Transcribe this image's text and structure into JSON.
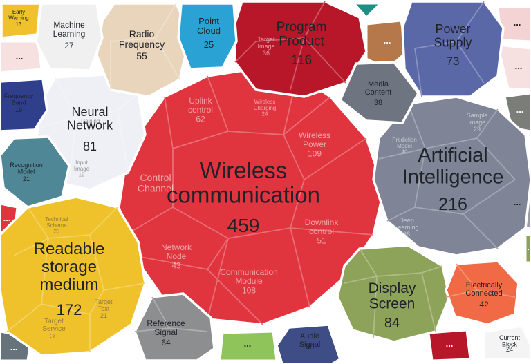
{
  "chart_data": {
    "type": "voronoi-treemap",
    "title": "",
    "cells": [
      {
        "label": "Wireless communication",
        "value": 459,
        "color": "#e0343f",
        "sub": [
          {
            "label": "Uplink control",
            "value": 62
          },
          {
            "label": "Wireless Charging",
            "value": 24
          },
          {
            "label": "Wireless Power",
            "value": 109
          },
          {
            "label": "Control Channel",
            "value": null
          },
          {
            "label": "Network Node",
            "value": 43
          },
          {
            "label": "Communication Module",
            "value": 108
          },
          {
            "label": "Downlink control",
            "value": 51
          }
        ]
      },
      {
        "label": "Artificial Intelligence",
        "value": 216,
        "color": "#7f8496",
        "sub": [
          {
            "label": "Prediction Model",
            "value": 40
          },
          {
            "label": "Sample image",
            "value": 29
          },
          {
            "label": "Deep Learning",
            "value": 38
          }
        ]
      },
      {
        "label": "Readable storage medium",
        "value": 172,
        "color": "#efc12a",
        "sub": [
          {
            "label": "Technical Scheme",
            "value": 23
          },
          {
            "label": "Target Text",
            "value": 21
          },
          {
            "label": "Target Service",
            "value": 30
          }
        ]
      },
      {
        "label": "Program Product",
        "value": 116,
        "color": "#b8172a",
        "sub": [
          {
            "label": "Target Image",
            "value": 36
          }
        ]
      },
      {
        "label": "Display Screen",
        "value": 84,
        "color": "#8ea35a",
        "sub": []
      },
      {
        "label": "Neural Network",
        "value": 81,
        "color": "#eef0f5",
        "sub": [
          {
            "label": "Training",
            "value": null
          },
          {
            "label": "Input Image",
            "value": 19
          }
        ]
      },
      {
        "label": "Power Supply",
        "value": 73,
        "color": "#5b68a8",
        "sub": []
      },
      {
        "label": "Reference Signal",
        "value": 64,
        "color": "#8d8e8f",
        "sub": []
      },
      {
        "label": "Radio Frequency",
        "value": 55,
        "color": "#e8d5bc",
        "sub": []
      },
      {
        "label": "Electrically Connected",
        "value": 42,
        "color": "#ef6a45",
        "sub": []
      },
      {
        "label": "Media Content",
        "value": 38,
        "color": "#6e7580",
        "sub": []
      },
      {
        "label": "Audio Signal",
        "value": 30,
        "color": "#3f4d86",
        "sub": []
      },
      {
        "label": "Machine Learning",
        "value": 27,
        "color": "#f0f0f0",
        "sub": []
      },
      {
        "label": "Point Cloud",
        "value": 25,
        "color": "#2aa3d4",
        "sub": []
      },
      {
        "label": "Current Block",
        "value": 24,
        "color": "#f4f4f4",
        "sub": []
      },
      {
        "label": "Recognition Model",
        "value": 21,
        "color": "#4f8796",
        "sub": []
      },
      {
        "label": "Frequency Band",
        "value": 19,
        "color": "#2f3f8c",
        "sub": []
      },
      {
        "label": "Early Warning",
        "value": 13,
        "color": "#efc12a",
        "sub": []
      }
    ],
    "minor_cells_label": "..."
  }
}
